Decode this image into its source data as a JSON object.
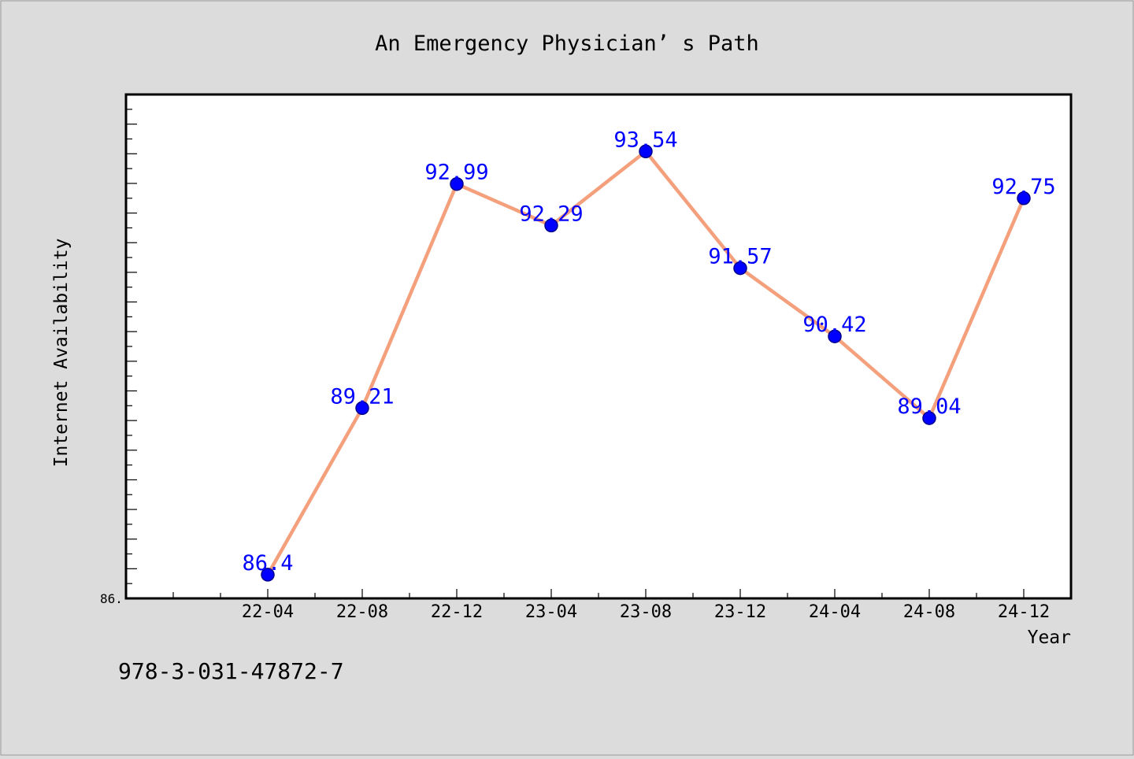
{
  "caption": "978-3-031-47872-7",
  "chart_data": {
    "type": "line",
    "title": "An Emergency Physician’ s Path",
    "xlabel": "Year",
    "ylabel": "Internet Availability",
    "categories": [
      "22-04",
      "22-08",
      "22-12",
      "23-04",
      "23-08",
      "23-12",
      "24-04",
      "24-08",
      "24-12"
    ],
    "series": [
      {
        "values": [
          86.4,
          89.21,
          92.99,
          92.29,
          93.54,
          91.57,
          90.42,
          89.04,
          92.75
        ],
        "labels": [
          "86.4",
          "89.21",
          "92.99",
          "92.29",
          "93.54",
          "91.57",
          "90.42",
          "89.04",
          "92.75"
        ]
      }
    ],
    "ylim": [
      86.0,
      94.5
    ],
    "y_tick_label": "86.",
    "grid": false,
    "colors": {
      "line": "#f4a07c",
      "marker": "#0000ff",
      "label": "#0000ff",
      "background": "#dcdcdc",
      "plot_background": "#ffffff"
    }
  }
}
